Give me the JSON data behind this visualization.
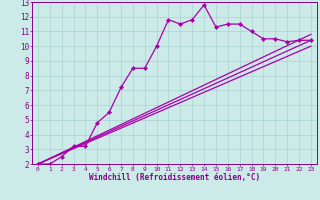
{
  "bg_color": "#cceae8",
  "line_color": "#aa00aa",
  "grid_color": "#aad4d0",
  "xlim": [
    -0.5,
    23.5
  ],
  "ylim": [
    2,
    13
  ],
  "xticks": [
    0,
    1,
    2,
    3,
    4,
    5,
    6,
    7,
    8,
    9,
    10,
    11,
    12,
    13,
    14,
    15,
    16,
    17,
    18,
    19,
    20,
    21,
    22,
    23
  ],
  "yticks": [
    2,
    3,
    4,
    5,
    6,
    7,
    8,
    9,
    10,
    11,
    12,
    13
  ],
  "xlabel": "Windchill (Refroidissement éolien,°C)",
  "series1_x": [
    0,
    1,
    2,
    3,
    4,
    5,
    6,
    7,
    8,
    9,
    10,
    11,
    12,
    13,
    14,
    15,
    16,
    17,
    18,
    19,
    20,
    21,
    22,
    23
  ],
  "series1_y": [
    2.0,
    2.0,
    2.5,
    3.2,
    3.2,
    4.8,
    5.5,
    7.2,
    8.5,
    8.5,
    10.0,
    11.8,
    11.5,
    11.8,
    12.8,
    11.3,
    11.5,
    11.5,
    11.0,
    10.5,
    10.5,
    10.3,
    10.4,
    10.4
  ],
  "line1_x": [
    0,
    23
  ],
  "line1_y": [
    2.0,
    10.4
  ],
  "line2_x": [
    0,
    23
  ],
  "line2_y": [
    2.0,
    10.8
  ],
  "line3_x": [
    0,
    23
  ],
  "line3_y": [
    2.0,
    10.0
  ],
  "lw": 0.9,
  "ms": 2.2
}
